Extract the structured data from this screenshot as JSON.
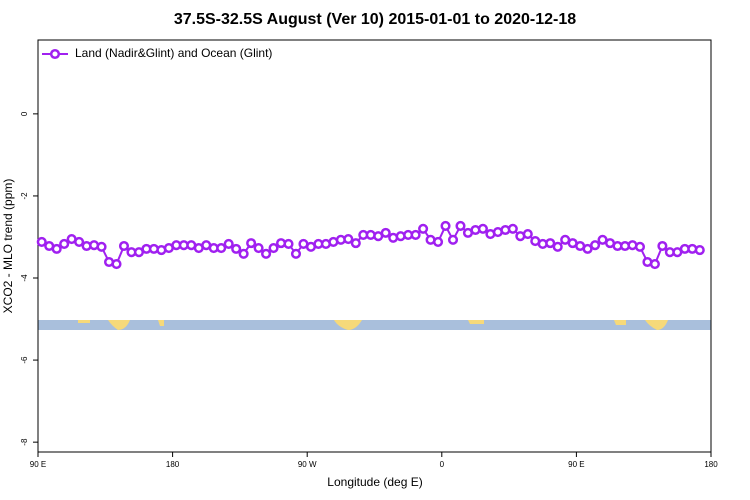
{
  "chart_data": {
    "type": "line",
    "title": "37.5S-32.5S August (Ver 10)   2015-01-01 to 2020-12-18",
    "x_label": "Longitude (deg E)",
    "y_label": "XCO2 - MLO trend (ppm)",
    "xlim": [
      90,
      540
    ],
    "xticks": [
      {
        "value": 90,
        "label": "90 E"
      },
      180,
      {
        "value": 270,
        "label": "90 W"
      },
      {
        "value": 360,
        "label": "0"
      },
      {
        "value": 450,
        "label": "90 E"
      },
      {
        "value": 540,
        "label": "180"
      }
    ],
    "ylim": [
      -8.24,
      1.8
    ],
    "yticks": [
      0,
      -2,
      -4,
      -6,
      -8
    ],
    "legend": "top-left",
    "series": [
      {
        "name": "Land (Nadir&Glint) and Ocean (Glint)",
        "color": "#a020f0",
        "x": [
          92.5,
          97.5,
          102.5,
          107.5,
          112.5,
          117.5,
          122.5,
          127.5,
          132.5,
          137.5,
          142.5,
          147.5,
          152.5,
          157.5,
          162.5,
          167.5,
          172.5,
          177.5,
          182.5,
          187.5,
          192.5,
          197.5,
          202.5,
          207.5,
          212.5,
          217.5,
          222.5,
          227.5,
          232.5,
          237.5,
          242.5,
          247.5,
          252.5,
          257.5,
          262.5,
          267.5,
          272.5,
          277.5,
          282.5,
          287.5,
          292.5,
          297.5,
          302.5,
          307.5,
          312.5,
          317.5,
          322.5,
          327.5,
          332.5,
          337.5,
          342.5,
          347.5,
          352.5,
          357.5,
          362.5,
          367.5,
          372.5,
          377.5,
          382.5,
          387.5,
          392.5,
          397.5,
          402.5,
          407.5,
          412.5,
          417.5,
          422.5,
          427.5,
          432.5,
          437.5,
          442.5,
          447.5,
          452.5,
          457.5,
          462.5,
          467.5,
          472.5,
          477.5,
          482.5,
          487.5,
          492.5,
          497.5,
          502.5,
          507.5,
          512.5,
          517.5,
          522.5,
          527.5,
          532.5
        ],
        "values": [
          -3.12,
          -3.22,
          -3.29,
          -3.17,
          -3.05,
          -3.12,
          -3.22,
          -3.2,
          -3.24,
          -3.61,
          -3.66,
          -3.22,
          -3.37,
          -3.37,
          -3.29,
          -3.29,
          -3.32,
          -3.27,
          -3.2,
          -3.2,
          -3.2,
          -3.27,
          -3.2,
          -3.27,
          -3.27,
          -3.17,
          -3.29,
          -3.41,
          -3.15,
          -3.27,
          -3.41,
          -3.27,
          -3.15,
          -3.17,
          -3.41,
          -3.17,
          -3.24,
          -3.17,
          -3.17,
          -3.12,
          -3.07,
          -3.05,
          -3.15,
          -2.95,
          -2.95,
          -2.98,
          -2.9,
          -3.02,
          -2.98,
          -2.95,
          -2.95,
          -2.8,
          -3.07,
          -3.12,
          -2.73,
          -3.07,
          -2.73,
          -2.9,
          -2.83,
          -2.8,
          -2.93,
          -2.88,
          -2.83,
          -2.8,
          -2.98,
          -2.93,
          -3.1,
          -3.17,
          -3.15,
          -3.24,
          -3.07,
          -3.15,
          -3.22,
          -3.29,
          -3.2,
          -3.07,
          -3.15,
          -3.22,
          -3.22,
          -3.2,
          -3.24,
          -3.61,
          -3.66,
          -3.22,
          -3.37,
          -3.37,
          -3.29,
          -3.29,
          -3.32
        ]
      }
    ]
  }
}
